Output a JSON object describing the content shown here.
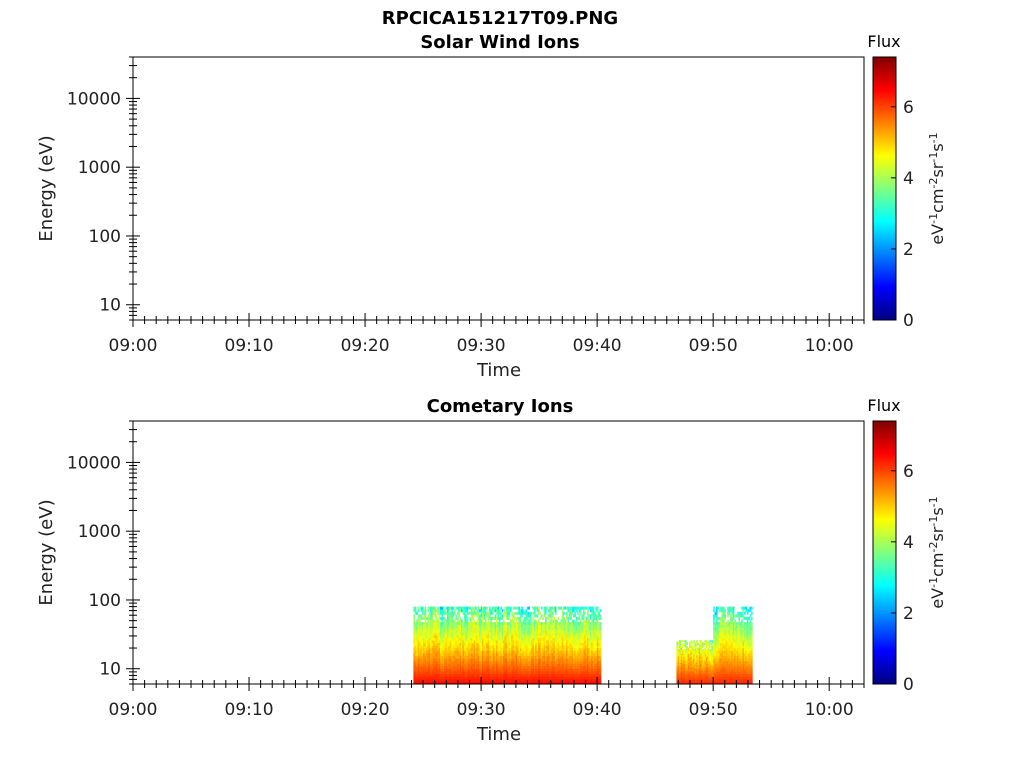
{
  "figure_title": "RPCICA151217T09.PNG",
  "chart_data": [
    {
      "type": "heatmap",
      "title": "Solar Wind Ions",
      "xlabel": "Time",
      "ylabel": "Energy (eV)",
      "xticks": [
        "09:00",
        "09:10",
        "09:20",
        "09:30",
        "09:40",
        "09:50",
        "10:00"
      ],
      "xlim": [
        "09:00",
        "10:03"
      ],
      "ylim": [
        6,
        40000
      ],
      "yscale": "log",
      "yticks": [
        10,
        100,
        1000,
        10000
      ],
      "ytick_labels": [
        "10",
        "100",
        "1000",
        "10000"
      ],
      "colorbar": {
        "title": "Flux",
        "units": [
          "eV",
          "-1",
          "cm",
          "-2",
          "sr",
          "-1",
          "s",
          "-1"
        ],
        "range": [
          0,
          7.4
        ],
        "ticks": [
          0,
          2,
          4,
          6
        ],
        "colormap": "jet"
      },
      "regions": []
    },
    {
      "type": "heatmap",
      "title": "Cometary Ions",
      "xlabel": "Time",
      "ylabel": "Energy (eV)",
      "xticks": [
        "09:00",
        "09:10",
        "09:20",
        "09:30",
        "09:40",
        "09:50",
        "10:00"
      ],
      "xlim": [
        "09:00",
        "10:03"
      ],
      "ylim": [
        6,
        40000
      ],
      "yscale": "log",
      "yticks": [
        10,
        100,
        1000,
        10000
      ],
      "ytick_labels": [
        "10",
        "100",
        "1000",
        "10000"
      ],
      "colorbar": {
        "title": "Flux",
        "units": [
          "eV",
          "-1",
          "cm",
          "-2",
          "sr",
          "-1",
          "s",
          "-1"
        ],
        "range": [
          0,
          7.4
        ],
        "ticks": [
          0,
          2,
          4,
          6
        ],
        "colormap": "jet"
      },
      "regions": [
        {
          "t_start": "09:24:10",
          "t_end": "09:40:20",
          "e_min": 6,
          "e_max": 80,
          "flux_low_energy": 6.4,
          "flux_high_energy": 3.2
        },
        {
          "t_start": "09:46:50",
          "t_end": "09:50:00",
          "e_min": 6,
          "e_max": 26,
          "flux_low_energy": 6.2,
          "flux_high_energy": 4.0
        },
        {
          "t_start": "09:50:00",
          "t_end": "09:53:20",
          "e_min": 6,
          "e_max": 80,
          "flux_low_energy": 6.2,
          "flux_high_energy": 3.0
        }
      ]
    }
  ]
}
